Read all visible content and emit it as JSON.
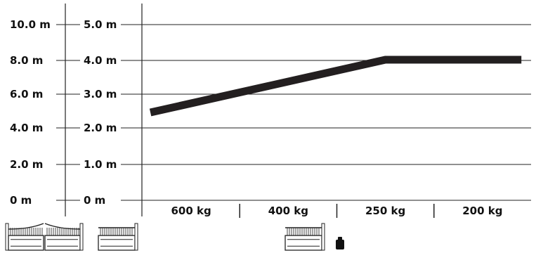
{
  "chart_data": {
    "type": "line",
    "title": "",
    "xlabel": "",
    "ylabel": "",
    "categories": [
      "600 kg",
      "400 kg",
      "250 kg",
      "200 kg"
    ],
    "y_axis_outer": {
      "labels": [
        "10.0 m",
        "8.0 m",
        "6.0 m",
        "4.0 m",
        "2.0 m",
        "0 m"
      ]
    },
    "y_axis_inner": {
      "labels": [
        "5.0 m",
        "4.0 m",
        "3.0 m",
        "2.0 m",
        "1.0 m",
        "0 m"
      ],
      "ylim": [
        0,
        5
      ]
    },
    "grid": true,
    "series": [
      {
        "x": [
          0.08,
          2.5,
          3.9
        ],
        "y": [
          2.5,
          4.0,
          4.0
        ]
      }
    ],
    "line_color": "#231f20",
    "icons": [
      "double-swing-gate-icon",
      "single-swing-gate-icon",
      "single-swing-gate-icon",
      "counterweight-icon"
    ]
  }
}
